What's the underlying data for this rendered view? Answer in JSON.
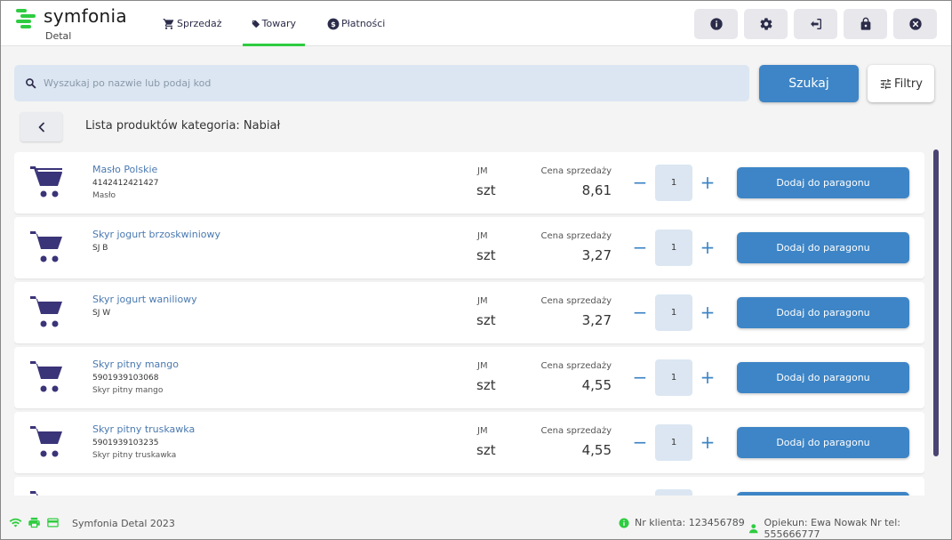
{
  "app": {
    "brand": "symfonia",
    "sub": "Detal"
  },
  "nav": [
    {
      "label": "Sprzedaż",
      "icon": "cart-icon",
      "active": false
    },
    {
      "label": "Towary",
      "icon": "tag-icon",
      "active": true
    },
    {
      "label": "Płatności",
      "icon": "dollar-icon",
      "active": false
    }
  ],
  "header_buttons": [
    "info-icon",
    "gear-icon",
    "logout-icon",
    "lock-icon",
    "close-icon"
  ],
  "search": {
    "placeholder": "Wyszukaj po nazwie lub podaj kod",
    "value": "",
    "button": "Szukaj"
  },
  "filters_label": "Filtry",
  "list_title": "Lista produktów kategoria: Nabiał",
  "labels": {
    "jm": "JM",
    "price": "Cena sprzedaży",
    "add": "Dodaj do paragonu"
  },
  "products": [
    {
      "name": "Masło Polskie",
      "code": "4142412421427",
      "category": "Masło",
      "unit": "szt",
      "price": "8,61",
      "qty": "1"
    },
    {
      "name": "Skyr jogurt brzoskwiniowy",
      "code": "SJ B",
      "category": "",
      "unit": "szt",
      "price": "3,27",
      "qty": "1"
    },
    {
      "name": "Skyr jogurt waniliowy",
      "code": "SJ W",
      "category": "",
      "unit": "szt",
      "price": "3,27",
      "qty": "1"
    },
    {
      "name": "Skyr pitny mango",
      "code": "5901939103068",
      "category": "Skyr pitny mango",
      "unit": "szt",
      "price": "4,55",
      "qty": "1"
    },
    {
      "name": "Skyr pitny truskawka",
      "code": "5901939103235",
      "category": "Skyr pitny truskawka",
      "unit": "szt",
      "price": "4,55",
      "qty": "1"
    },
    {
      "name": "",
      "code": "",
      "category": "",
      "unit": "",
      "price": "",
      "qty": ""
    }
  ],
  "footer": {
    "app_name": "Symfonia Detal 2023",
    "client": "Nr klienta: 123456789",
    "opiekun": "Opiekun: Ewa Nowak Nr tel: 555666777"
  },
  "colors": {
    "accent": "#3d85c6",
    "green": "#2ecc40",
    "icon_dark": "#3a3478"
  }
}
